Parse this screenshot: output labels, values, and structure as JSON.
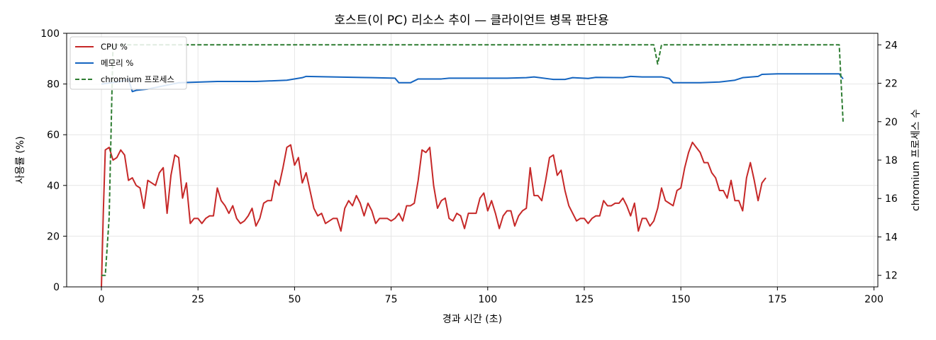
{
  "chart_data": {
    "type": "line",
    "title": "호스트(이 PC) 리소스 추이 — 클라이언트 병목 판단용",
    "xlabel": "경과 시간 (초)",
    "ylabel": "사용률 (%)",
    "y2label": "chromium 프로세스 수",
    "xlim": [
      -9,
      201
    ],
    "ylim": [
      0,
      100
    ],
    "y2lim": [
      11.4,
      24.6
    ],
    "xticks": [
      0,
      25,
      50,
      75,
      100,
      125,
      150,
      175,
      200
    ],
    "yticks": [
      0,
      20,
      40,
      60,
      80,
      100
    ],
    "y2ticks": [
      12,
      14,
      16,
      18,
      20,
      22,
      24
    ],
    "grid": true,
    "legend_position": "top-left",
    "series": [
      {
        "name": "CPU %",
        "axis": "left",
        "color": "#c62828",
        "style": "solid",
        "points": [
          [
            0,
            0
          ],
          [
            0.5,
            30
          ],
          [
            1,
            54
          ],
          [
            2,
            55
          ],
          [
            3,
            50
          ],
          [
            4,
            51
          ],
          [
            5,
            54
          ],
          [
            6,
            52
          ],
          [
            7,
            42
          ],
          [
            8,
            43
          ],
          [
            9,
            40
          ],
          [
            10,
            39
          ],
          [
            11,
            31
          ],
          [
            12,
            42
          ],
          [
            13,
            41
          ],
          [
            14,
            40
          ],
          [
            15,
            45
          ],
          [
            16,
            47
          ],
          [
            17,
            29
          ],
          [
            18,
            44
          ],
          [
            19,
            52
          ],
          [
            20,
            51
          ],
          [
            21,
            35
          ],
          [
            22,
            41
          ],
          [
            23,
            25
          ],
          [
            24,
            27
          ],
          [
            25,
            27
          ],
          [
            26,
            25
          ],
          [
            27,
            27
          ],
          [
            28,
            28
          ],
          [
            29,
            28
          ],
          [
            30,
            39
          ],
          [
            31,
            34
          ],
          [
            32,
            32
          ],
          [
            33,
            29
          ],
          [
            34,
            32
          ],
          [
            35,
            27
          ],
          [
            36,
            25
          ],
          [
            37,
            26
          ],
          [
            38,
            28
          ],
          [
            39,
            31
          ],
          [
            40,
            24
          ],
          [
            41,
            27
          ],
          [
            42,
            33
          ],
          [
            43,
            34
          ],
          [
            44,
            34
          ],
          [
            45,
            42
          ],
          [
            46,
            40
          ],
          [
            47,
            47
          ],
          [
            48,
            55
          ],
          [
            49,
            56
          ],
          [
            50,
            48
          ],
          [
            51,
            51
          ],
          [
            52,
            41
          ],
          [
            53,
            45
          ],
          [
            54,
            38
          ],
          [
            55,
            31
          ],
          [
            56,
            28
          ],
          [
            57,
            29
          ],
          [
            58,
            25
          ],
          [
            59,
            26
          ],
          [
            60,
            27
          ],
          [
            61,
            27
          ],
          [
            62,
            22
          ],
          [
            63,
            31
          ],
          [
            64,
            34
          ],
          [
            65,
            32
          ],
          [
            66,
            36
          ],
          [
            67,
            33
          ],
          [
            68,
            28
          ],
          [
            69,
            33
          ],
          [
            70,
            30
          ],
          [
            71,
            25
          ],
          [
            72,
            27
          ],
          [
            73,
            27
          ],
          [
            74,
            27
          ],
          [
            75,
            26
          ],
          [
            76,
            27
          ],
          [
            77,
            29
          ],
          [
            78,
            26
          ],
          [
            79,
            32
          ],
          [
            80,
            32
          ],
          [
            81,
            33
          ],
          [
            82,
            42
          ],
          [
            83,
            54
          ],
          [
            84,
            53
          ],
          [
            85,
            55
          ],
          [
            86,
            40
          ],
          [
            87,
            31
          ],
          [
            88,
            34
          ],
          [
            89,
            35
          ],
          [
            90,
            27
          ],
          [
            91,
            26
          ],
          [
            92,
            29
          ],
          [
            93,
            28
          ],
          [
            94,
            23
          ],
          [
            95,
            29
          ],
          [
            96,
            29
          ],
          [
            97,
            29
          ],
          [
            98,
            35
          ],
          [
            99,
            37
          ],
          [
            100,
            30
          ],
          [
            101,
            34
          ],
          [
            102,
            29
          ],
          [
            103,
            23
          ],
          [
            104,
            28
          ],
          [
            105,
            30
          ],
          [
            106,
            30
          ],
          [
            107,
            24
          ],
          [
            108,
            28
          ],
          [
            109,
            30
          ],
          [
            110,
            31
          ],
          [
            111,
            47
          ],
          [
            112,
            36
          ],
          [
            113,
            36
          ],
          [
            114,
            34
          ],
          [
            115,
            42
          ],
          [
            116,
            51
          ],
          [
            117,
            52
          ],
          [
            118,
            44
          ],
          [
            119,
            46
          ],
          [
            120,
            38
          ],
          [
            121,
            32
          ],
          [
            122,
            29
          ],
          [
            123,
            26
          ],
          [
            124,
            27
          ],
          [
            125,
            27
          ],
          [
            126,
            25
          ],
          [
            127,
            27
          ],
          [
            128,
            28
          ],
          [
            129,
            28
          ],
          [
            130,
            34
          ],
          [
            131,
            32
          ],
          [
            132,
            32
          ],
          [
            133,
            33
          ],
          [
            134,
            33
          ],
          [
            135,
            35
          ],
          [
            136,
            32
          ],
          [
            137,
            28
          ],
          [
            138,
            33
          ],
          [
            139,
            22
          ],
          [
            140,
            27
          ],
          [
            141,
            27
          ],
          [
            142,
            24
          ],
          [
            143,
            26
          ],
          [
            144,
            31
          ],
          [
            145,
            39
          ],
          [
            146,
            34
          ],
          [
            147,
            33
          ],
          [
            148,
            32
          ],
          [
            149,
            38
          ],
          [
            150,
            39
          ],
          [
            151,
            47
          ],
          [
            152,
            53
          ],
          [
            153,
            57
          ],
          [
            154,
            55
          ],
          [
            155,
            53
          ],
          [
            156,
            49
          ],
          [
            157,
            49
          ],
          [
            158,
            45
          ],
          [
            159,
            43
          ],
          [
            160,
            38
          ],
          [
            161,
            38
          ],
          [
            162,
            35
          ],
          [
            163,
            42
          ],
          [
            164,
            34
          ],
          [
            165,
            34
          ],
          [
            166,
            30
          ],
          [
            167,
            43
          ],
          [
            168,
            49
          ],
          [
            169,
            42
          ],
          [
            170,
            34
          ],
          [
            171,
            41
          ],
          [
            172,
            43
          ]
        ]
      },
      {
        "name": "메모리 %",
        "axis": "left",
        "color": "#1565c0",
        "style": "solid",
        "points": [
          [
            0,
            80
          ],
          [
            5,
            81
          ],
          [
            7,
            82
          ],
          [
            8,
            77
          ],
          [
            9,
            77.5
          ],
          [
            12,
            78
          ],
          [
            20,
            80.5
          ],
          [
            30,
            81
          ],
          [
            40,
            81
          ],
          [
            48,
            81.5
          ],
          [
            52,
            82.5
          ],
          [
            53,
            83
          ],
          [
            60,
            82.8
          ],
          [
            70,
            82.5
          ],
          [
            76,
            82.3
          ],
          [
            77,
            80.5
          ],
          [
            80,
            80.5
          ],
          [
            82,
            82
          ],
          [
            88,
            82
          ],
          [
            90,
            82.3
          ],
          [
            100,
            82.3
          ],
          [
            105,
            82.3
          ],
          [
            110,
            82.5
          ],
          [
            112,
            82.8
          ],
          [
            116,
            82
          ],
          [
            117,
            81.8
          ],
          [
            120,
            81.8
          ],
          [
            122,
            82.5
          ],
          [
            126,
            82.2
          ],
          [
            128,
            82.6
          ],
          [
            135,
            82.5
          ],
          [
            137,
            83
          ],
          [
            140,
            82.8
          ],
          [
            145,
            82.8
          ],
          [
            147,
            82.2
          ],
          [
            148,
            80.5
          ],
          [
            155,
            80.5
          ],
          [
            160,
            80.8
          ],
          [
            164,
            81.5
          ],
          [
            166,
            82.5
          ],
          [
            170,
            83
          ],
          [
            171,
            83.8
          ],
          [
            175,
            84
          ],
          [
            180,
            84
          ],
          [
            185,
            84
          ],
          [
            190,
            84
          ],
          [
            191,
            84
          ],
          [
            192,
            82
          ]
        ]
      },
      {
        "name": "chromium 프로세스",
        "axis": "right",
        "color": "#2e7d32",
        "style": "dashed",
        "points": [
          [
            0,
            12
          ],
          [
            1,
            12
          ],
          [
            2,
            15
          ],
          [
            3,
            24
          ],
          [
            4,
            24
          ],
          [
            143,
            24
          ],
          [
            144,
            23
          ],
          [
            145,
            24
          ],
          [
            190,
            24
          ],
          [
            191,
            24
          ],
          [
            192,
            20
          ]
        ]
      }
    ]
  }
}
